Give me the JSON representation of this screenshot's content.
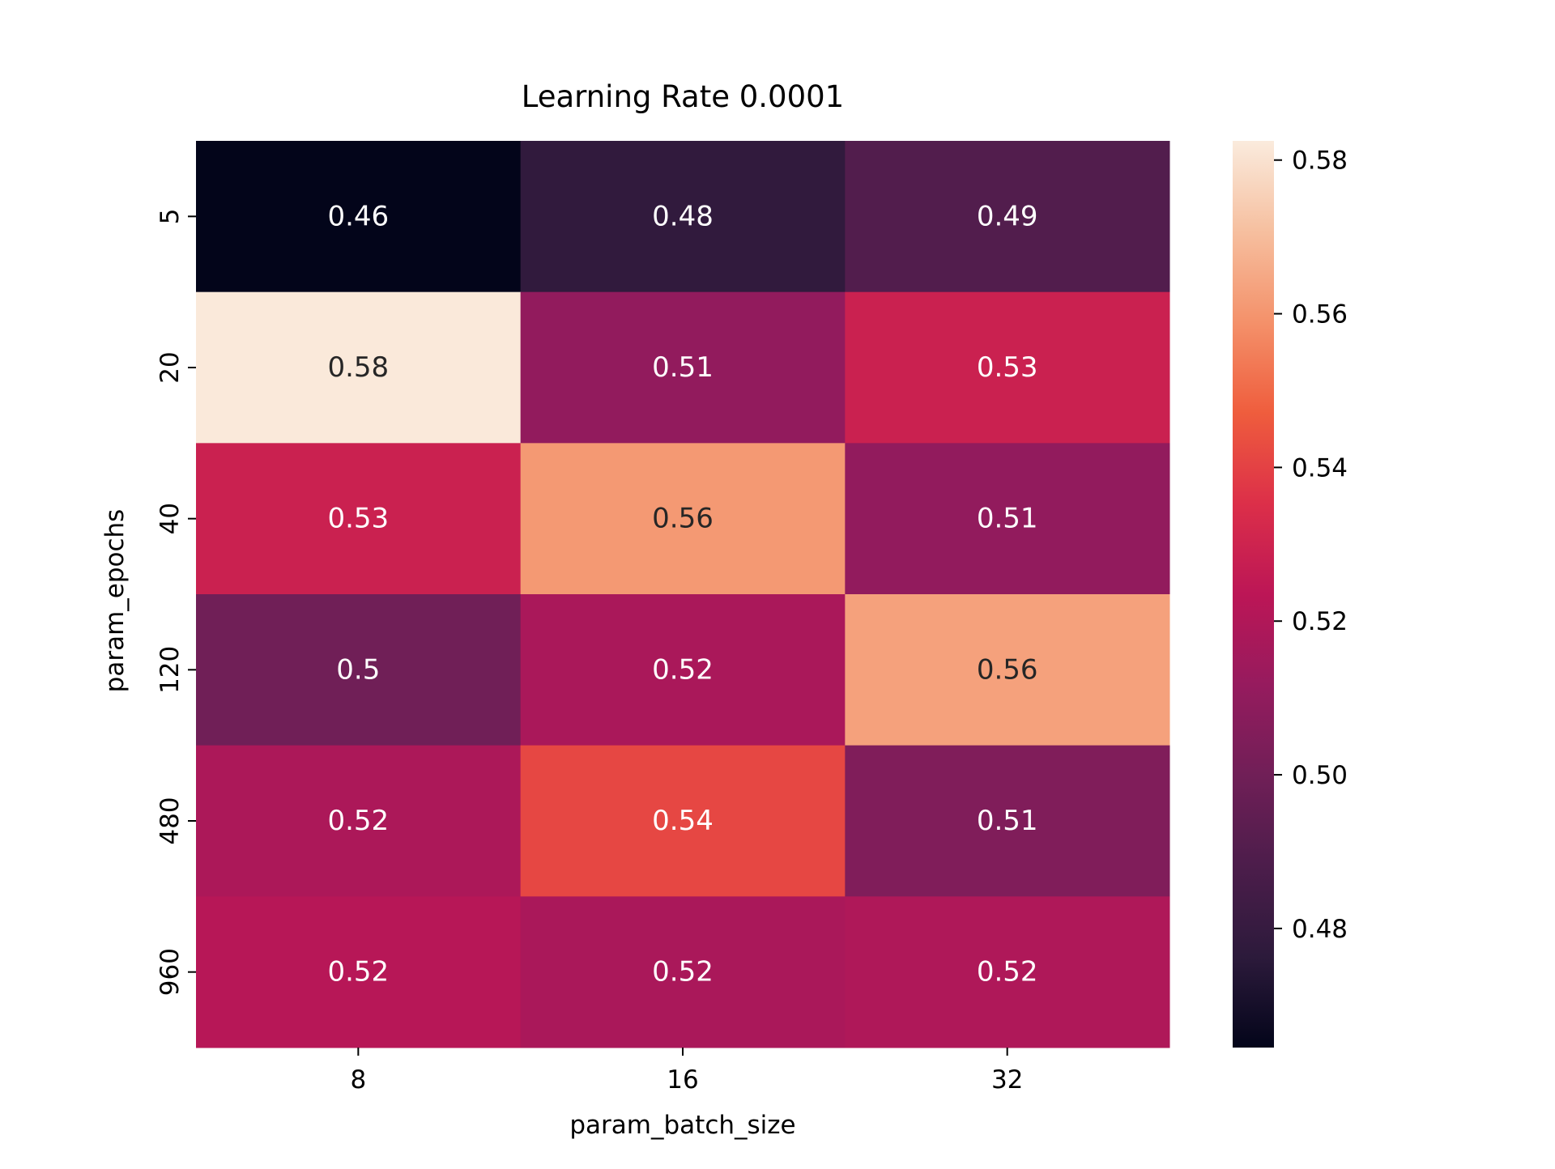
{
  "chart_data": {
    "type": "heatmap",
    "title": "Learning Rate 0.0001",
    "xlabel": "param_batch_size",
    "ylabel": "param_epochs",
    "x_categories": [
      "8",
      "16",
      "32"
    ],
    "y_categories": [
      "5",
      "20",
      "40",
      "120",
      "480",
      "960"
    ],
    "values": [
      [
        0.4645,
        0.478,
        0.49
      ],
      [
        0.582,
        0.5105,
        0.5285
      ],
      [
        0.5285,
        0.561,
        0.5105
      ],
      [
        0.5,
        0.518,
        0.563
      ],
      [
        0.5185,
        0.5415,
        0.505
      ],
      [
        0.522,
        0.518,
        0.5195
      ]
    ],
    "cell_labels": [
      [
        "0.46",
        "0.48",
        "0.49"
      ],
      [
        "0.58",
        "0.51",
        "0.53"
      ],
      [
        "0.53",
        "0.56",
        "0.51"
      ],
      [
        "0.5",
        "0.52",
        "0.56"
      ],
      [
        "0.52",
        "0.54",
        "0.51"
      ],
      [
        "0.52",
        "0.52",
        "0.52"
      ]
    ],
    "colorbar": {
      "range": [
        0.4645,
        0.5825
      ],
      "ticks": [
        0.48,
        0.5,
        0.52,
        0.54,
        0.56,
        0.58
      ],
      "tick_labels": [
        "0.48",
        "0.50",
        "0.52",
        "0.54",
        "0.56",
        "0.58"
      ],
      "colormap": "rocket",
      "colormap_stops": [
        "#03051a",
        "#2c1a3b",
        "#4c1d4b",
        "#701f57",
        "#961b5e",
        "#bc1656",
        "#dc2f49",
        "#ef5d3d",
        "#f4916a",
        "#f6bf9f",
        "#faebdd"
      ]
    },
    "legend": "colorbar-right",
    "grid": false
  }
}
